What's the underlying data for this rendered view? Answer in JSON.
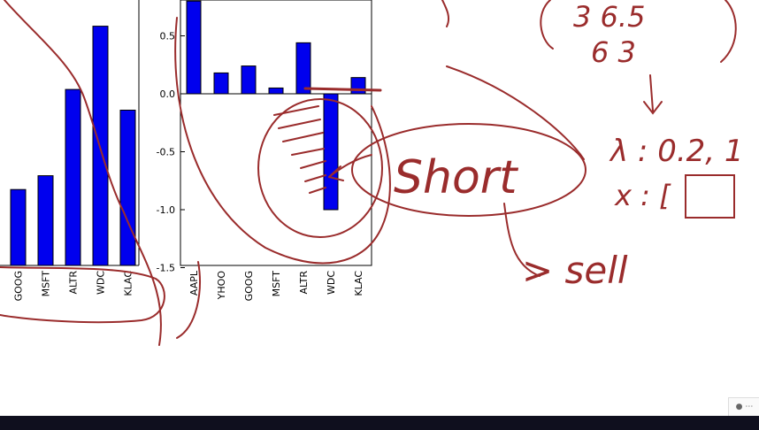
{
  "colors": {
    "bar": "#0000ee",
    "ink": "#9a2c2c",
    "axis": "#000000",
    "background": "#ffffff",
    "taskbar": "#0f0f1e"
  },
  "chart_data": [
    {
      "type": "bar",
      "partial": true,
      "categories": [
        "GOOG",
        "MSFT",
        "ALTR",
        "WDC",
        "KLAC"
      ],
      "values": [
        0.66,
        0.78,
        1.53,
        2.08,
        1.35
      ],
      "grid": false
    },
    {
      "type": "bar",
      "categories": [
        "AAPL",
        "YHOO",
        "GOOG",
        "MSFT",
        "ALTR",
        "WDC",
        "KLAC"
      ],
      "values": [
        0.8,
        0.18,
        0.24,
        0.05,
        0.44,
        -1.0,
        0.14
      ],
      "yticks": [
        "0.5",
        "0.0",
        "-0.5",
        "-1.0",
        "-1.5"
      ],
      "ylim": [
        -1.5,
        0.8
      ],
      "grid": false
    }
  ],
  "handwriting": {
    "short": "Short",
    "sell": "> sell",
    "lambda": "λ : 0.2, 1",
    "x_vec": "x : [",
    "matrix_row1": "3   6.5",
    "matrix_row2": "6   3"
  },
  "taskbar": {
    "badge_icon": "app-badge-icon"
  }
}
